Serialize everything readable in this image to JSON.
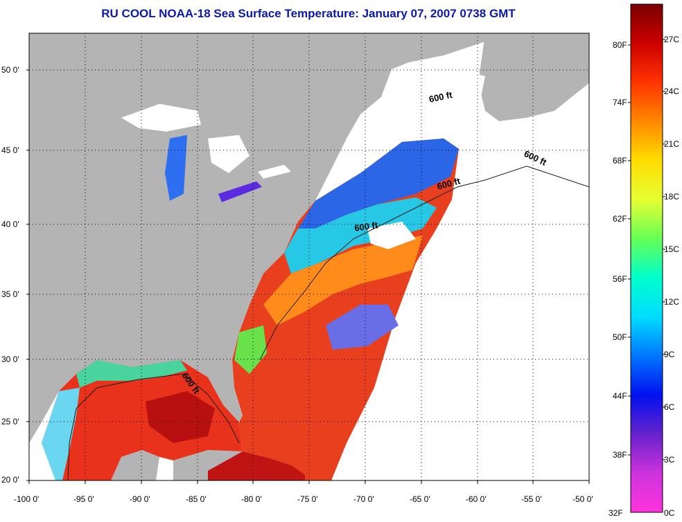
{
  "title": "RU COOL  NOAA-18  Sea Surface Temperature:  January 07, 2007 0738 GMT",
  "map": {
    "lon_range": [
      -100,
      -50
    ],
    "lat_range": [
      20,
      52.5
    ],
    "grid": "dotted",
    "lat_ticks": [
      {
        "value": 50,
        "label": "50 0'"
      },
      {
        "value": 45,
        "label": "45 0'"
      },
      {
        "value": 40,
        "label": "40 0'"
      },
      {
        "value": 35,
        "label": "35 0'"
      },
      {
        "value": 30,
        "label": "30 0'"
      },
      {
        "value": 25,
        "label": "25 0'"
      },
      {
        "value": 20,
        "label": "20 0'"
      }
    ],
    "lon_ticks": [
      {
        "value": -100,
        "label": "-100 0'"
      },
      {
        "value": -95,
        "label": "-95 0'"
      },
      {
        "value": -90,
        "label": "-90 0'"
      },
      {
        "value": -85,
        "label": "-85 0'"
      },
      {
        "value": -80,
        "label": "-80 0'"
      },
      {
        "value": -75,
        "label": "-75 0'"
      },
      {
        "value": -70,
        "label": "-70 0'"
      },
      {
        "value": -65,
        "label": "-65 0'"
      },
      {
        "value": -60,
        "label": "-60 0'"
      },
      {
        "value": -55,
        "label": "-55 0'"
      },
      {
        "value": -50,
        "label": "-50 0'"
      }
    ],
    "contour_labels": [
      "600 ft",
      "600 ft",
      "600 ft",
      "600 ft",
      "600 ft"
    ],
    "colors": {
      "land": "#b4b4b4",
      "no_data": "#ffffff",
      "gulf_stream": "#e8281c",
      "shelf_cold": "#2a66e6",
      "title": "#0a1aa8"
    }
  },
  "colorbar": {
    "range_c": [
      0,
      28
    ],
    "fahrenheit_labels": [
      "80F",
      "74F",
      "68F",
      "62F",
      "56F",
      "50F",
      "44F",
      "38F",
      "32F"
    ],
    "celsius_labels": [
      "27C",
      "24C",
      "21C",
      "18C",
      "15C",
      "12C",
      "9C",
      "6C",
      "3C",
      "0C"
    ],
    "gradient": [
      "#7a0000",
      "#cc0000",
      "#ff3300",
      "#ff8800",
      "#ffdd00",
      "#e6ff33",
      "#66ff55",
      "#00ffcc",
      "#00ddff",
      "#0077ff",
      "#0011ee",
      "#6622cc",
      "#cc33dd",
      "#ff33dd"
    ]
  }
}
